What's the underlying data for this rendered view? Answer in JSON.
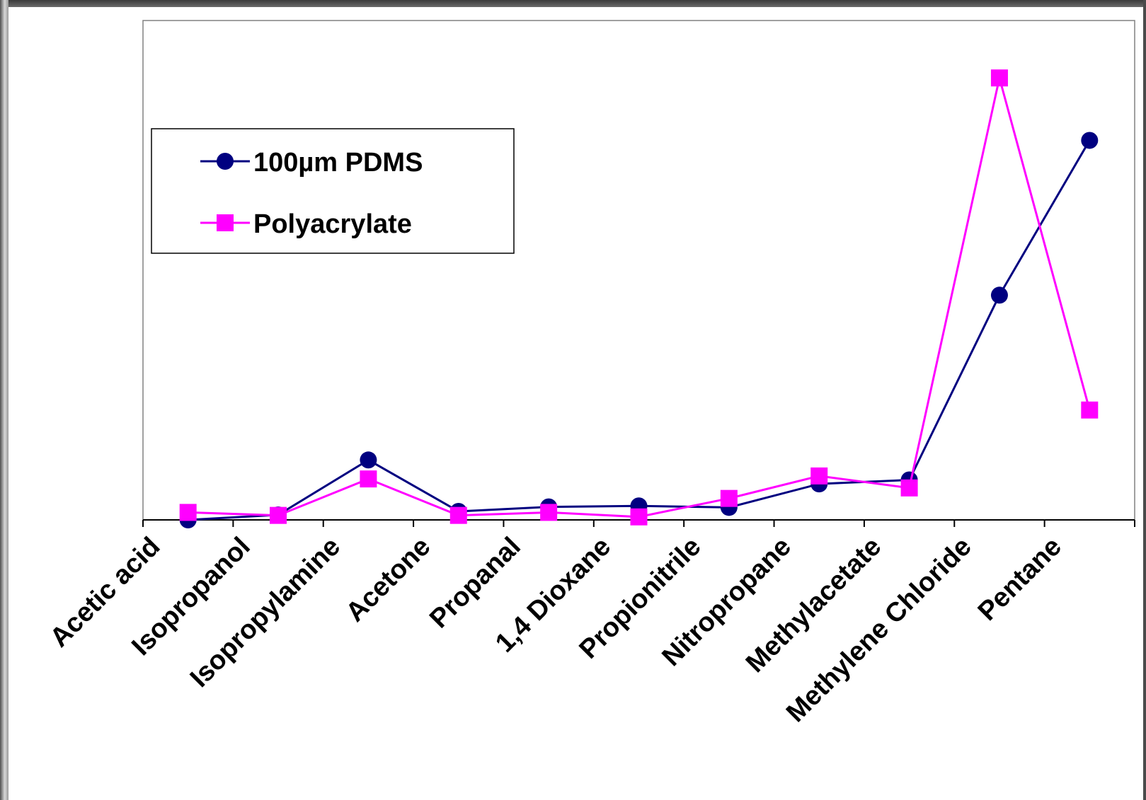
{
  "chart_data": {
    "type": "line",
    "title": "",
    "xlabel": "",
    "ylabel": "",
    "categories": [
      "Acetic acid",
      "Isopropanol",
      "Isopropylamine",
      "Acetone",
      "Propanal",
      "1,4 Dioxane",
      "Propionitrile",
      "Nitropropane",
      "Methylacetate",
      "Methylene Chloride",
      "Pentane"
    ],
    "ylim": [
      0,
      100
    ],
    "grid": false,
    "legend_position": "left",
    "series": [
      {
        "name": "100µm PDMS",
        "color": "#000080",
        "marker": "circle",
        "values": [
          0,
          1.0,
          12.0,
          1.7,
          2.6,
          2.8,
          2.5,
          7.2,
          8.0,
          45.0,
          76.0
        ]
      },
      {
        "name": "Polyacrylate",
        "color": "#ff00ff",
        "marker": "square",
        "values": [
          1.5,
          0.9,
          8.2,
          0.9,
          1.5,
          0.6,
          4.3,
          8.8,
          6.4,
          88.5,
          22.0
        ]
      }
    ]
  }
}
